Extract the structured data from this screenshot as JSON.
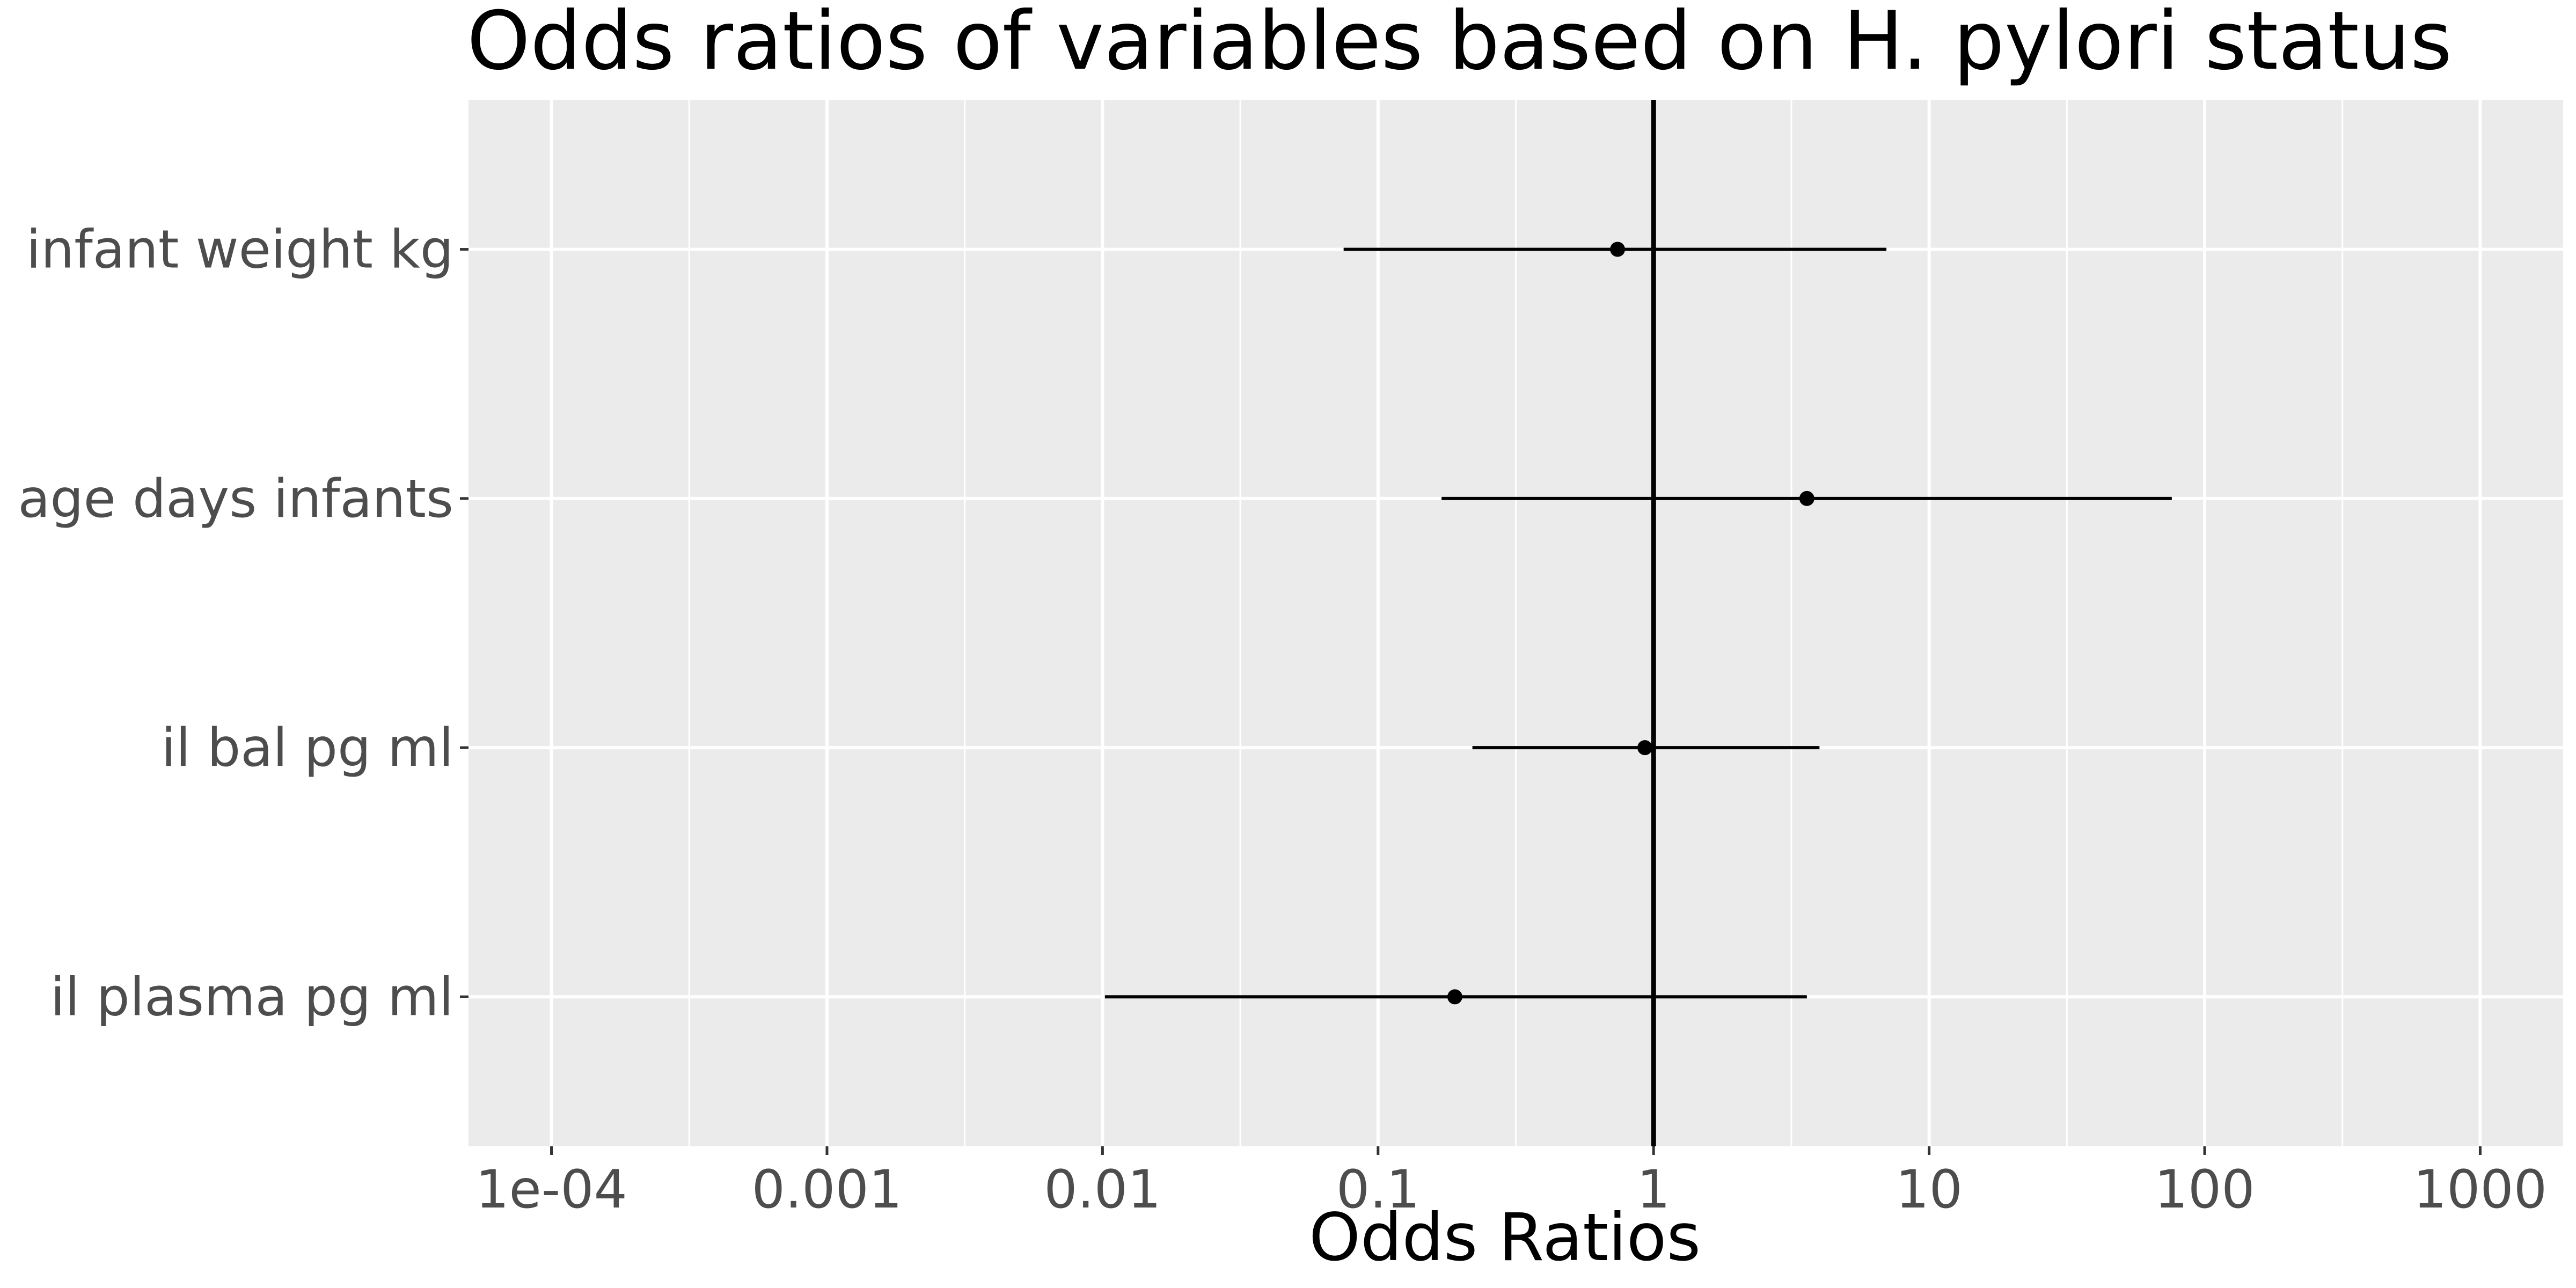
{
  "chart_data": {
    "type": "forest",
    "title": "Odds ratios of variables based on H. pylori status",
    "xlabel": "Odds Ratios",
    "ylabel": "",
    "x_scale": "log10",
    "xlim": [
      5e-05,
      2000
    ],
    "x_ticks": [
      {
        "value": 0.0001,
        "label": "1e-04"
      },
      {
        "value": 0.001,
        "label": "0.001"
      },
      {
        "value": 0.01,
        "label": "0.01"
      },
      {
        "value": 0.1,
        "label": "0.1"
      },
      {
        "value": 1,
        "label": "1"
      },
      {
        "value": 10,
        "label": "10"
      },
      {
        "value": 100,
        "label": "100"
      },
      {
        "value": 1000,
        "label": "1000"
      }
    ],
    "reference_line": 1,
    "grid": true,
    "legend": "none",
    "rows": [
      {
        "label": "infant weight kg",
        "estimate": 0.74,
        "ci_low": 0.075,
        "ci_high": 7.0
      },
      {
        "label": "age days infants",
        "estimate": 3.6,
        "ci_low": 0.17,
        "ci_high": 76
      },
      {
        "label": "il bal pg ml",
        "estimate": 0.93,
        "ci_low": 0.22,
        "ci_high": 4.0
      },
      {
        "label": "il plasma pg ml",
        "estimate": 0.19,
        "ci_low": 0.0102,
        "ci_high": 3.6
      }
    ],
    "colors": {
      "panel_background": "#ebebeb",
      "grid_line": "#ffffff",
      "mark": "#000000",
      "tick_label": "#4d4d4d"
    }
  }
}
